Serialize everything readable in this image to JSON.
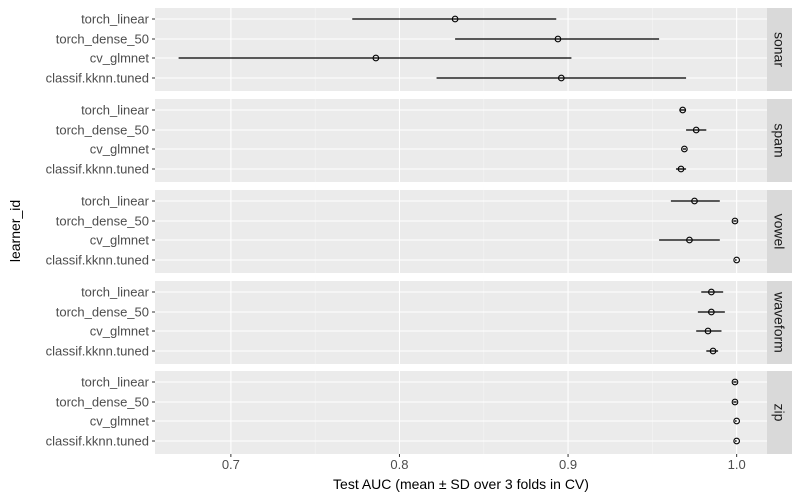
{
  "chart_data": {
    "type": "scatter",
    "subtype": "dot-errorbar, faceted by row",
    "xlabel": "Test AUC (mean ± SD over 3 folds in CV)",
    "ylabel": "learner_id",
    "xlim": [
      0.655,
      1.018
    ],
    "x_ticks": [
      0.7,
      0.8,
      0.9,
      1.0
    ],
    "x_tick_labels": [
      "0.7",
      "0.8",
      "0.9",
      "1.0"
    ],
    "grid": true,
    "learners": [
      "torch_linear",
      "torch_dense_50",
      "cv_glmnet",
      "classif.kknn.tuned"
    ],
    "facets": [
      {
        "name": "sonar",
        "points": [
          {
            "learner": "torch_linear",
            "mean": 0.833,
            "lo": 0.772,
            "hi": 0.893
          },
          {
            "learner": "torch_dense_50",
            "mean": 0.894,
            "lo": 0.833,
            "hi": 0.954
          },
          {
            "learner": "cv_glmnet",
            "mean": 0.786,
            "lo": 0.669,
            "hi": 0.902
          },
          {
            "learner": "classif.kknn.tuned",
            "mean": 0.896,
            "lo": 0.822,
            "hi": 0.97
          }
        ]
      },
      {
        "name": "spam",
        "points": [
          {
            "learner": "torch_linear",
            "mean": 0.968,
            "lo": 0.966,
            "hi": 0.97
          },
          {
            "learner": "torch_dense_50",
            "mean": 0.976,
            "lo": 0.97,
            "hi": 0.982
          },
          {
            "learner": "cv_glmnet",
            "mean": 0.969,
            "lo": 0.968,
            "hi": 0.97
          },
          {
            "learner": "classif.kknn.tuned",
            "mean": 0.967,
            "lo": 0.964,
            "hi": 0.97
          }
        ]
      },
      {
        "name": "vowel",
        "points": [
          {
            "learner": "torch_linear",
            "mean": 0.975,
            "lo": 0.961,
            "hi": 0.99
          },
          {
            "learner": "torch_dense_50",
            "mean": 0.999,
            "lo": 0.998,
            "hi": 1.0
          },
          {
            "learner": "cv_glmnet",
            "mean": 0.972,
            "lo": 0.954,
            "hi": 0.99
          },
          {
            "learner": "classif.kknn.tuned",
            "mean": 1.0,
            "lo": 0.999,
            "hi": 1.0
          }
        ]
      },
      {
        "name": "waveform",
        "points": [
          {
            "learner": "torch_linear",
            "mean": 0.985,
            "lo": 0.979,
            "hi": 0.992
          },
          {
            "learner": "torch_dense_50",
            "mean": 0.985,
            "lo": 0.977,
            "hi": 0.993
          },
          {
            "learner": "cv_glmnet",
            "mean": 0.983,
            "lo": 0.976,
            "hi": 0.991
          },
          {
            "learner": "classif.kknn.tuned",
            "mean": 0.986,
            "lo": 0.982,
            "hi": 0.989
          }
        ]
      },
      {
        "name": "zip",
        "points": [
          {
            "learner": "torch_linear",
            "mean": 0.999,
            "lo": 0.998,
            "hi": 1.0
          },
          {
            "learner": "torch_dense_50",
            "mean": 0.999,
            "lo": 0.998,
            "hi": 1.0
          },
          {
            "learner": "cv_glmnet",
            "mean": 1.0,
            "lo": 0.999,
            "hi": 1.0
          },
          {
            "learner": "classif.kknn.tuned",
            "mean": 1.0,
            "lo": 0.999,
            "hi": 1.0
          }
        ]
      }
    ],
    "colors": {
      "panel_background": "#ebebeb",
      "grid_major": "#ffffff",
      "grid_minor": "#f5f5f5",
      "strip_background": "#d9d9d9",
      "point_stroke": "#000000",
      "errorbar": "#000000"
    }
  }
}
